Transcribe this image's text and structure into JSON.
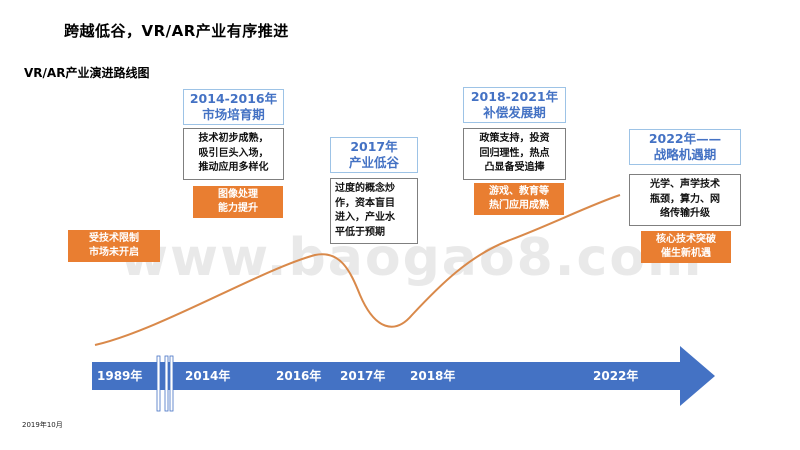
{
  "page": {
    "title": "跨越低谷，VR/AR产业有序推进",
    "subtitle": "VR/AR产业演进路线图",
    "date": "2019年10月",
    "watermark": "www.baogao8.com"
  },
  "stages": [
    {
      "title": [
        "2014-2016年",
        "市场培育期"
      ],
      "desc": [
        "技术初步成熟，",
        "吸引巨头入场，",
        "推动应用多样化"
      ],
      "tag": [
        "图像处理",
        "能力提升"
      ]
    },
    {
      "title": [
        "2017年",
        "产业低谷"
      ],
      "desc": [
        "过度的概念炒",
        "作，资本盲目",
        "进入，产业水",
        "平低于预期"
      ]
    },
    {
      "title": [
        "2018-2021年",
        "补偿发展期"
      ],
      "desc": [
        "政策支持，投资",
        "回归理性，热点",
        "凸显备受追捧"
      ],
      "tag": [
        "游戏、教育等",
        "热门应用成熟"
      ]
    },
    {
      "title": [
        "2022年——",
        "战略机遇期"
      ],
      "desc": [
        "光学、声学技术",
        "瓶颈，算力、网",
        "络传输升级"
      ],
      "tag": [
        "核心技术突破",
        "催生新机遇"
      ]
    }
  ],
  "early_tag": [
    "受技术限制",
    "市场未开启"
  ],
  "timeline": {
    "years": [
      "1989年",
      "2014年",
      "2016年",
      "2017年",
      "2018年",
      "2022年"
    ],
    "colors": {
      "arrow": "#4472c4",
      "curve": "#d9894a",
      "accent": "#e97e31",
      "title_text": "#4472c4"
    }
  }
}
